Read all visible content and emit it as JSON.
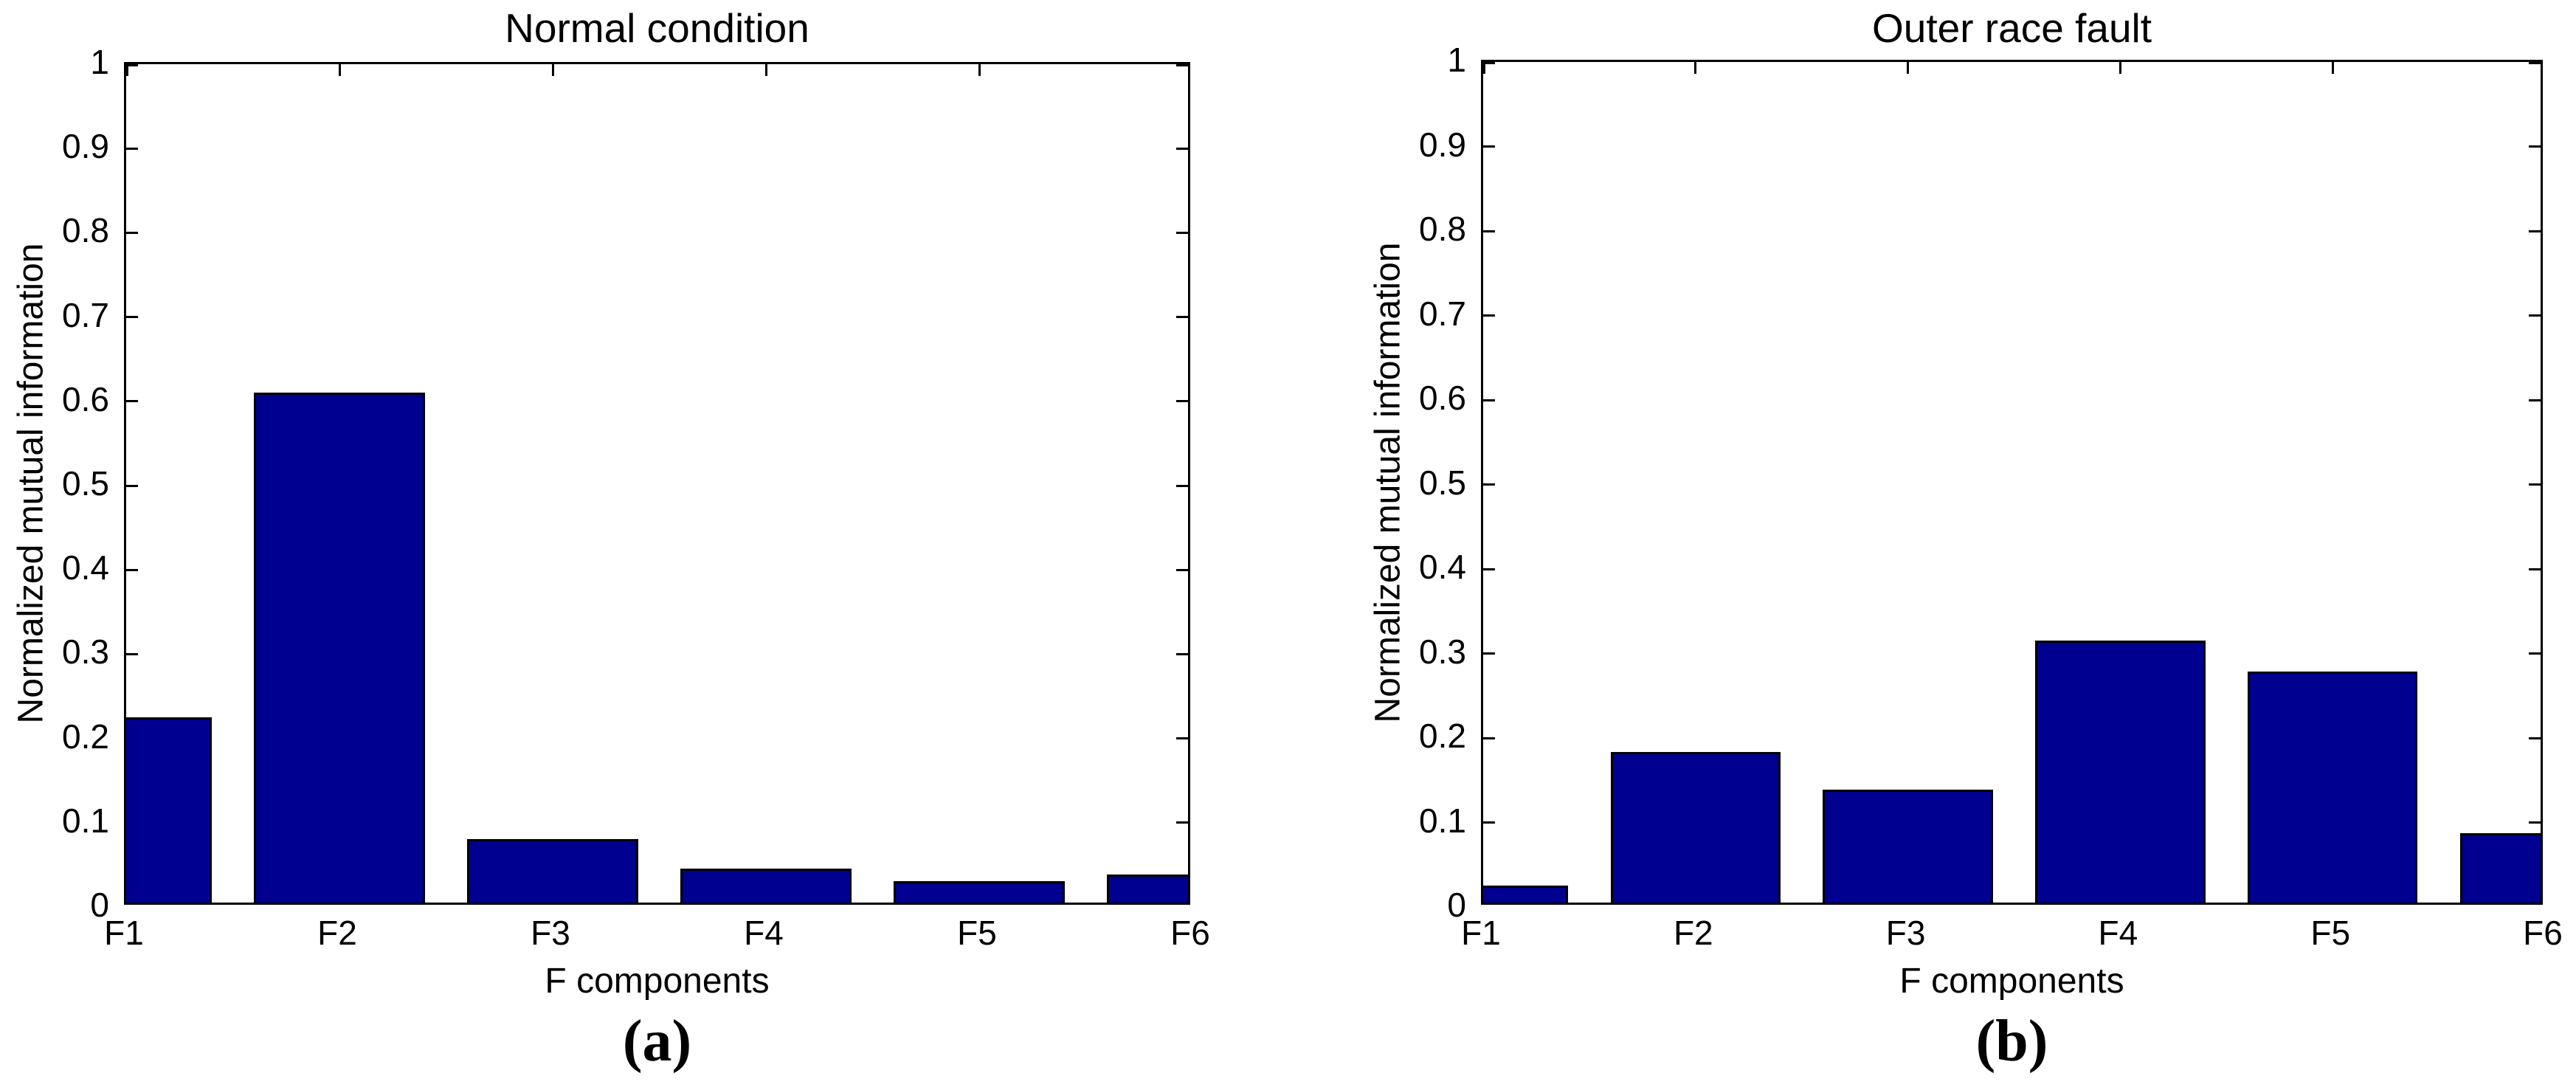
{
  "figure": {
    "background": "#ffffff",
    "axis_color": "#000000",
    "bar_fill": "#000090",
    "bar_edge": "#000000"
  },
  "chart_data": [
    {
      "type": "bar",
      "panel_label": "(a)",
      "title": "Normal condition",
      "xlabel": "F components",
      "ylabel": "Normalized mutual information",
      "categories": [
        "F1",
        "F2",
        "F3",
        "F4",
        "F5",
        "F6"
      ],
      "values": [
        0.22,
        0.605,
        0.075,
        0.04,
        0.025,
        0.033
      ],
      "ylim": [
        0,
        1
      ],
      "yticks": [
        0,
        0.1,
        0.2,
        0.3,
        0.4,
        0.5,
        0.6,
        0.7,
        0.8,
        0.9,
        1
      ],
      "ytick_labels": [
        "0",
        "0.1",
        "0.2",
        "0.3",
        "0.4",
        "0.5",
        "0.6",
        "0.7",
        "0.8",
        "0.9",
        "1"
      ],
      "grid": false,
      "legend": "none",
      "bar_width_fraction": 0.8,
      "note_first_last_bars_clipped_at_axes": true
    },
    {
      "type": "bar",
      "panel_label": "(b)",
      "title": "Outer race fault",
      "xlabel": "F components",
      "ylabel": "Normalized mutual information",
      "categories": [
        "F1",
        "F2",
        "F3",
        "F4",
        "F5",
        "F6"
      ],
      "values": [
        0.02,
        0.178,
        0.134,
        0.31,
        0.273,
        0.082
      ],
      "ylim": [
        0,
        1
      ],
      "yticks": [
        0,
        0.1,
        0.2,
        0.3,
        0.4,
        0.5,
        0.6,
        0.7,
        0.8,
        0.9,
        1
      ],
      "ytick_labels": [
        "0",
        "0.1",
        "0.2",
        "0.3",
        "0.4",
        "0.5",
        "0.6",
        "0.7",
        "0.8",
        "0.9",
        "1"
      ],
      "grid": false,
      "legend": "none",
      "bar_width_fraction": 0.8,
      "note_first_last_bars_clipped_at_axes": true
    }
  ]
}
